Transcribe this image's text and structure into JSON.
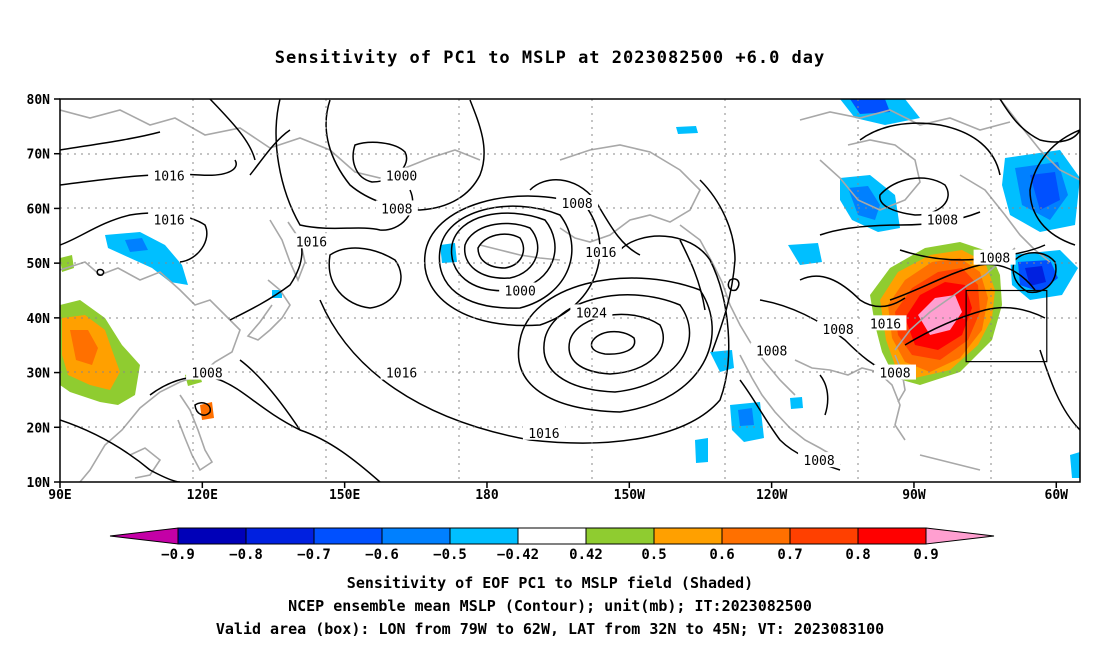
{
  "title": "Sensitivity of PC1 to MSLP at 2023082500 +6.0 day",
  "map": {
    "lat_labels": [
      "80N",
      "70N",
      "60N",
      "50N",
      "40N",
      "30N",
      "20N",
      "10N"
    ],
    "lon_labels": [
      "90E",
      "120E",
      "150E",
      "180",
      "150W",
      "120W",
      "90W",
      "60W"
    ],
    "lat_range": [
      10,
      80
    ],
    "lon_range": [
      90,
      305
    ],
    "valid_box": {
      "lon_min": 281,
      "lon_max": 298,
      "lat_min": 32,
      "lat_max": 45
    },
    "contour_labels": [
      {
        "text": "1016",
        "lon": 113,
        "lat": 66
      },
      {
        "text": "1016",
        "lon": 113,
        "lat": 58
      },
      {
        "text": "1000",
        "lon": 162,
        "lat": 66
      },
      {
        "text": "1008",
        "lon": 161,
        "lat": 60
      },
      {
        "text": "1016",
        "lon": 143,
        "lat": 54
      },
      {
        "text": "1008",
        "lon": 199,
        "lat": 61
      },
      {
        "text": "1016",
        "lon": 204,
        "lat": 52
      },
      {
        "text": "1000",
        "lon": 187,
        "lat": 45
      },
      {
        "text": "1024",
        "lon": 202,
        "lat": 41
      },
      {
        "text": "1016",
        "lon": 162,
        "lat": 30
      },
      {
        "text": "1008",
        "lon": 121,
        "lat": 30
      },
      {
        "text": "1008",
        "lon": 240,
        "lat": 34
      },
      {
        "text": "1008",
        "lon": 254,
        "lat": 38
      },
      {
        "text": "1016",
        "lon": 264,
        "lat": 39
      },
      {
        "text": "1008",
        "lon": 266,
        "lat": 30
      },
      {
        "text": "1008",
        "lon": 276,
        "lat": 58
      },
      {
        "text": "1008",
        "lon": 287,
        "lat": 51
      },
      {
        "text": "1016",
        "lon": 192,
        "lat": 19
      },
      {
        "text": "1008",
        "lon": 250,
        "lat": 14
      }
    ]
  },
  "colorbar": {
    "colors": [
      "#c400a6",
      "#0000b8",
      "#0020e0",
      "#0050ff",
      "#0080ff",
      "#00bfff",
      "#ffffff",
      "#8fcc30",
      "#ffa000",
      "#ff7000",
      "#ff4000",
      "#ff0000",
      "#ff9fd0"
    ],
    "labels": [
      "−0.9",
      "−0.8",
      "−0.7",
      "−0.6",
      "−0.5",
      "−0.42",
      "0.42",
      "0.5",
      "0.6",
      "0.7",
      "0.8",
      "0.9"
    ]
  },
  "captions": {
    "line1": "Sensitivity of EOF PC1 to MSLP field (Shaded)",
    "line2": "NCEP ensemble mean MSLP (Contour); unit(mb); IT:2023082500",
    "line3": "Valid area (box): LON from 79W to 62W, LAT from 32N to 45N; VT: 2023083100"
  }
}
